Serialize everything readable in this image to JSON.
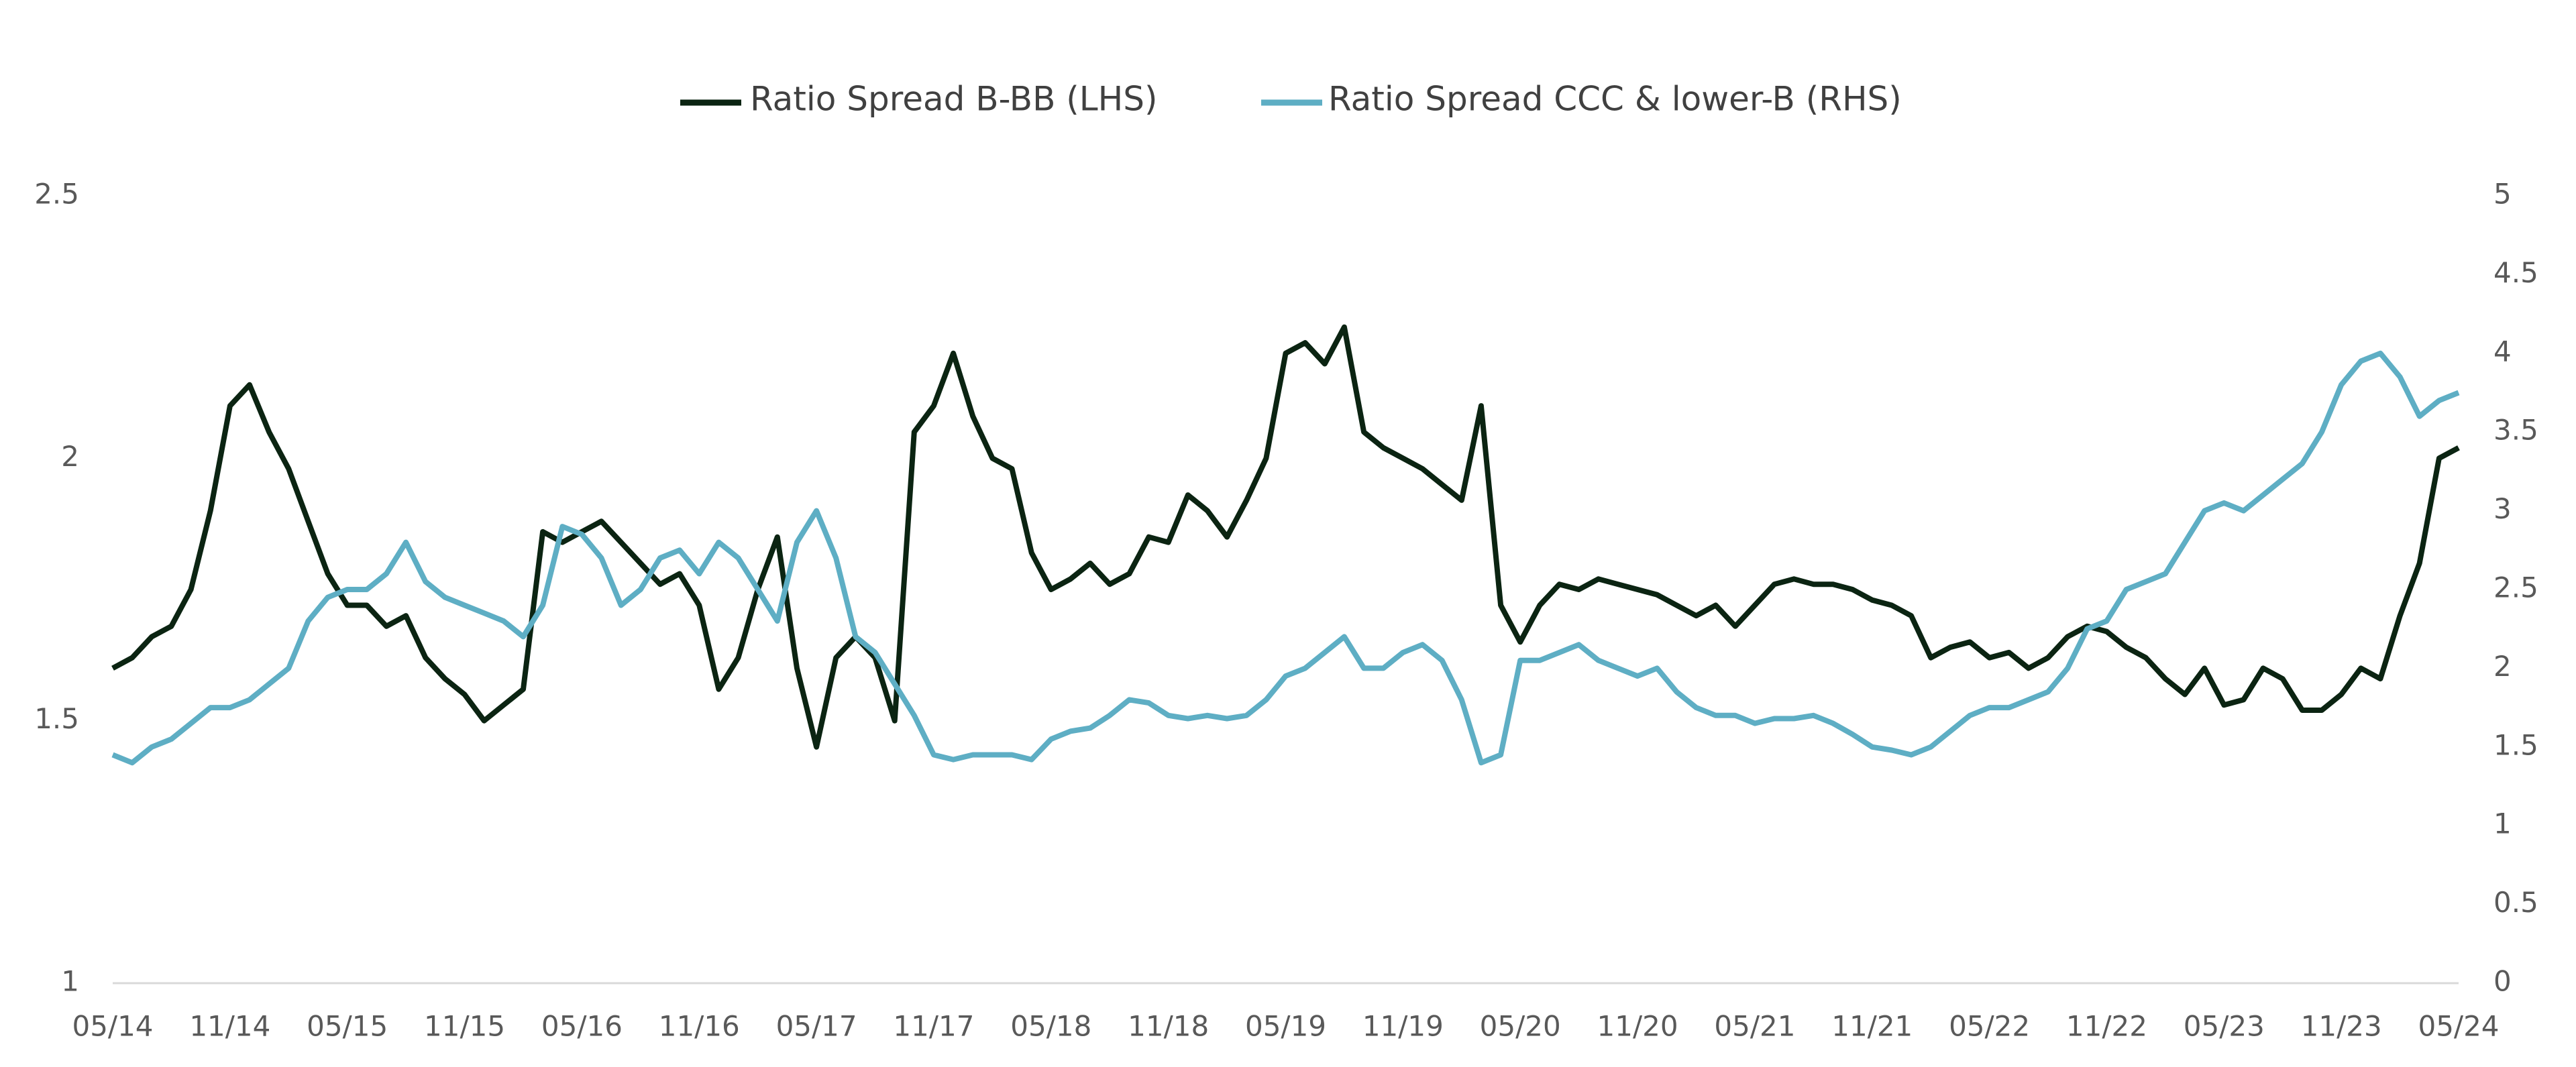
{
  "chart_data": {
    "type": "line",
    "x": [
      "05/14",
      "06/14",
      "07/14",
      "08/14",
      "09/14",
      "10/14",
      "11/14",
      "12/14",
      "01/15",
      "02/15",
      "03/15",
      "04/15",
      "05/15",
      "06/15",
      "07/15",
      "08/15",
      "09/15",
      "10/15",
      "11/15",
      "12/15",
      "01/16",
      "02/16",
      "03/16",
      "04/16",
      "05/16",
      "06/16",
      "07/16",
      "08/16",
      "09/16",
      "10/16",
      "11/16",
      "12/16",
      "01/17",
      "02/17",
      "03/17",
      "04/17",
      "05/17",
      "06/17",
      "07/17",
      "08/17",
      "09/17",
      "10/17",
      "11/17",
      "12/17",
      "01/18",
      "02/18",
      "03/18",
      "04/18",
      "05/18",
      "06/18",
      "07/18",
      "08/18",
      "09/18",
      "10/18",
      "11/18",
      "12/18",
      "01/19",
      "02/19",
      "03/19",
      "04/19",
      "05/19",
      "06/19",
      "07/19",
      "08/19",
      "09/19",
      "10/19",
      "11/19",
      "12/19",
      "01/20",
      "02/20",
      "03/20",
      "04/20",
      "05/20",
      "06/20",
      "07/20",
      "08/20",
      "09/20",
      "10/20",
      "11/20",
      "12/20",
      "01/21",
      "02/21",
      "03/21",
      "04/21",
      "05/21",
      "06/21",
      "07/21",
      "08/21",
      "09/21",
      "10/21",
      "11/21",
      "12/21",
      "01/22",
      "02/22",
      "03/22",
      "04/22",
      "05/22",
      "06/22",
      "07/22",
      "08/22",
      "09/22",
      "10/22",
      "11/22",
      "12/22",
      "01/23",
      "02/23",
      "03/23",
      "04/23",
      "05/23",
      "06/23",
      "07/23",
      "08/23",
      "09/23",
      "10/23",
      "11/23",
      "12/23",
      "01/24",
      "02/24",
      "03/24",
      "04/24",
      "05/24"
    ],
    "xticks": [
      "05/14",
      "11/14",
      "05/15",
      "11/15",
      "05/16",
      "11/16",
      "05/17",
      "11/17",
      "05/18",
      "11/18",
      "05/19",
      "11/19",
      "05/20",
      "11/20",
      "05/21",
      "11/21",
      "05/22",
      "11/22",
      "05/23",
      "11/23",
      "05/24"
    ],
    "series": [
      {
        "name": "Ratio Spread B-BB (LHS)",
        "color": "#0b2412",
        "axis": "y",
        "values": [
          1.6,
          1.62,
          1.66,
          1.68,
          1.75,
          1.9,
          2.1,
          2.14,
          2.05,
          1.98,
          1.88,
          1.78,
          1.72,
          1.72,
          1.68,
          1.7,
          1.62,
          1.58,
          1.55,
          1.5,
          1.53,
          1.56,
          1.86,
          1.84,
          1.86,
          1.88,
          1.84,
          1.8,
          1.76,
          1.78,
          1.72,
          1.56,
          1.62,
          1.75,
          1.85,
          1.6,
          1.45,
          1.62,
          1.66,
          1.62,
          1.5,
          2.05,
          2.1,
          2.2,
          2.08,
          2.0,
          1.98,
          1.82,
          1.75,
          1.77,
          1.8,
          1.76,
          1.78,
          1.85,
          1.84,
          1.93,
          1.9,
          1.85,
          1.92,
          2.0,
          2.2,
          2.22,
          2.18,
          2.25,
          2.05,
          2.02,
          2.0,
          1.98,
          1.95,
          1.92,
          2.1,
          1.72,
          1.65,
          1.72,
          1.76,
          1.75,
          1.77,
          1.76,
          1.75,
          1.74,
          1.72,
          1.7,
          1.72,
          1.68,
          1.72,
          1.76,
          1.77,
          1.76,
          1.76,
          1.75,
          1.73,
          1.72,
          1.7,
          1.62,
          1.64,
          1.65,
          1.62,
          1.63,
          1.6,
          1.62,
          1.66,
          1.68,
          1.67,
          1.64,
          1.62,
          1.58,
          1.55,
          1.6,
          1.53,
          1.54,
          1.6,
          1.58,
          1.52,
          1.52,
          1.55,
          1.6,
          1.58,
          1.7,
          1.8,
          2.0,
          2.02
        ]
      },
      {
        "name": "Ratio Spread CCC & lower-B (RHS)",
        "color": "#5eaec4",
        "axis": "y2",
        "values": [
          1.45,
          1.4,
          1.5,
          1.55,
          1.65,
          1.75,
          1.75,
          1.8,
          1.9,
          2.0,
          2.3,
          2.45,
          2.5,
          2.5,
          2.6,
          2.8,
          2.55,
          2.45,
          2.4,
          2.35,
          2.3,
          2.2,
          2.4,
          2.9,
          2.85,
          2.7,
          2.4,
          2.5,
          2.7,
          2.75,
          2.6,
          2.8,
          2.7,
          2.5,
          2.3,
          2.8,
          3.0,
          2.7,
          2.2,
          2.1,
          1.9,
          1.7,
          1.45,
          1.42,
          1.45,
          1.45,
          1.45,
          1.42,
          1.55,
          1.6,
          1.62,
          1.7,
          1.8,
          1.78,
          1.7,
          1.68,
          1.7,
          1.68,
          1.7,
          1.8,
          1.95,
          2.0,
          2.1,
          2.2,
          2.0,
          2.0,
          2.1,
          2.15,
          2.05,
          1.8,
          1.4,
          1.45,
          2.05,
          2.05,
          2.1,
          2.15,
          2.05,
          2.0,
          1.95,
          2.0,
          1.85,
          1.75,
          1.7,
          1.7,
          1.65,
          1.68,
          1.68,
          1.7,
          1.65,
          1.58,
          1.5,
          1.48,
          1.45,
          1.5,
          1.6,
          1.7,
          1.75,
          1.75,
          1.8,
          1.85,
          2.0,
          2.25,
          2.3,
          2.5,
          2.55,
          2.6,
          2.8,
          3.0,
          3.05,
          3.0,
          3.1,
          3.2,
          3.3,
          3.5,
          3.8,
          3.95,
          4.0,
          3.85,
          3.6,
          3.7,
          3.75
        ]
      }
    ],
    "ylim": [
      1,
      2.5
    ],
    "yticks": [
      1,
      1.5,
      2,
      2.5
    ],
    "y2lim": [
      0,
      5
    ],
    "y2ticks": [
      0,
      0.5,
      1,
      1.5,
      2,
      2.5,
      3,
      3.5,
      4,
      4.5,
      5
    ],
    "legend": "top",
    "grid": false
  }
}
